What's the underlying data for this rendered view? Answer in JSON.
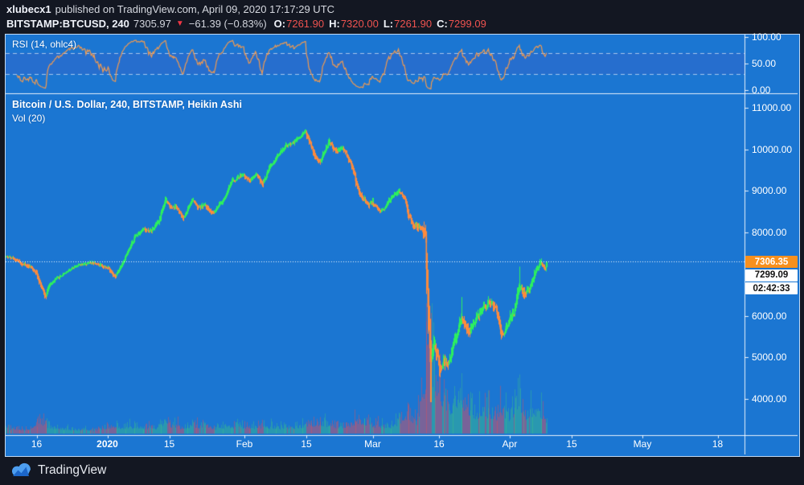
{
  "header": {
    "username": "xlubecx1",
    "published_text": "published on TradingView.com, April 09, 2020 17:17:29 UTC",
    "symbol": "BITSTAMP:BTCUSD, 240",
    "last_price": "7305.97",
    "direction_icon": "▼",
    "change_text": "−61.39 (−0.83%)",
    "ohlc": [
      {
        "label": "O:",
        "value": "7261.90"
      },
      {
        "label": "H:",
        "value": "7320.00"
      },
      {
        "label": "L:",
        "value": "7261.90"
      },
      {
        "label": "C:",
        "value": "7299.09"
      }
    ]
  },
  "rsi_pane": {
    "label": "RSI (14, ohlc4)",
    "axis_labels": [
      {
        "value": 100,
        "text": "100.00"
      },
      {
        "value": 50,
        "text": "50.00"
      },
      {
        "value": 0,
        "text": "0.00"
      }
    ],
    "upper_band": 70,
    "lower_band": 30
  },
  "main_pane": {
    "title": "Bitcoin / U.S. Dollar, 240, BITSTAMP, Heikin Ashi",
    "vol_label": "Vol (20)",
    "axis_labels": [
      {
        "price": 11000,
        "text": "11000.00"
      },
      {
        "price": 10000,
        "text": "10000.00"
      },
      {
        "price": 9000,
        "text": "9000.00"
      },
      {
        "price": 8000,
        "text": "8000.00"
      },
      {
        "price": 6000,
        "text": "6000.00"
      },
      {
        "price": 5000,
        "text": "5000.00"
      },
      {
        "price": 4000,
        "text": "4000.00"
      }
    ],
    "price_tags": [
      {
        "text": "7306.35",
        "bg": "#f7901e",
        "fg": "#ffffff",
        "name": "countdown-price-tag"
      },
      {
        "text": "7299.09",
        "bg": "#ffffff",
        "fg": "#111111",
        "name": "last-close-tag"
      },
      {
        "text": "02:42:33",
        "bg": "#ffffff",
        "fg": "#111111",
        "name": "bar-countdown-tag"
      }
    ]
  },
  "time_axis": {
    "ticks": [
      {
        "day": 7,
        "label": "16"
      },
      {
        "day": 23,
        "label": "2020",
        "bold": true
      },
      {
        "day": 37,
        "label": "15"
      },
      {
        "day": 54,
        "label": "Feb"
      },
      {
        "day": 68,
        "label": "15"
      },
      {
        "day": 83,
        "label": "Mar"
      },
      {
        "day": 98,
        "label": "16"
      },
      {
        "day": 114,
        "label": "Apr"
      },
      {
        "day": 128,
        "label": "15"
      },
      {
        "day": 144,
        "label": "May"
      },
      {
        "day": 161,
        "label": "18"
      }
    ]
  },
  "footer": {
    "brand": "TradingView"
  },
  "colors": {
    "page_bg": "#131722",
    "chart_bg": "#1b76d2",
    "candle_up": "#2df05f",
    "candle_down": "#ff8b3d",
    "vol_up": "rgba(62,205,125,0.40)",
    "vol_down": "rgba(214,80,96,0.50)",
    "rsi_line": "#f29a4f",
    "rsi_band_fill": "rgba(100,66,186,0.16)",
    "separator": "rgba(255,255,255,0.9)",
    "accent_tag": "#f7901e",
    "down_red": "#ef5350"
  },
  "chart_data": {
    "type": "heikin-ashi candlestick + volume + rsi",
    "symbol": "BITSTAMP:BTCUSD",
    "interval_minutes": 240,
    "chart_style": "Heikin Ashi",
    "indicators": [
      "RSI (14, ohlc4)",
      "Vol (20)"
    ],
    "current_price": 7306.35,
    "prev_close": 7299.09,
    "bar_countdown": "02:42:33",
    "date_range": {
      "start": "2019-12-09",
      "end_of_data": "2020-04-09",
      "axis_end": "2020-05-20"
    },
    "price_axis_range_visible": [
      3170,
      11330
    ],
    "rsi_axis_range": [
      0,
      100
    ],
    "price_anchors_day_price": [
      [
        0,
        7420
      ],
      [
        3,
        7280
      ],
      [
        5,
        7150
      ],
      [
        7,
        7000
      ],
      [
        8.6,
        6550
      ],
      [
        9,
        6480
      ],
      [
        9.4,
        6700
      ],
      [
        11,
        6870
      ],
      [
        13,
        7050
      ],
      [
        16,
        7180
      ],
      [
        19,
        7250
      ],
      [
        21,
        7190
      ],
      [
        23,
        7210
      ],
      [
        24.6,
        6950
      ],
      [
        25.4,
        7080
      ],
      [
        26.5,
        7360
      ],
      [
        29,
        7880
      ],
      [
        31,
        8050
      ],
      [
        33,
        8020
      ],
      [
        34.5,
        8180
      ],
      [
        36,
        8780
      ],
      [
        37,
        8680
      ],
      [
        38.5,
        8620
      ],
      [
        40,
        8350
      ],
      [
        42,
        8860
      ],
      [
        43.5,
        8580
      ],
      [
        45,
        8640
      ],
      [
        47,
        8440
      ],
      [
        49,
        8680
      ],
      [
        51,
        9260
      ],
      [
        53,
        9380
      ],
      [
        55,
        9320
      ],
      [
        56.5,
        9480
      ],
      [
        58,
        9160
      ],
      [
        60,
        9640
      ],
      [
        62,
        9880
      ],
      [
        64,
        10080
      ],
      [
        66,
        10280
      ],
      [
        67.5,
        10440
      ],
      [
        68.5,
        10220
      ],
      [
        70,
        9900
      ],
      [
        71,
        9760
      ],
      [
        73,
        10180
      ],
      [
        74.5,
        9960
      ],
      [
        76,
        10000
      ],
      [
        78,
        9580
      ],
      [
        80,
        8920
      ],
      [
        82,
        8660
      ],
      [
        83,
        8760
      ],
      [
        84.5,
        8540
      ],
      [
        87,
        8820
      ],
      [
        89,
        9020
      ],
      [
        90,
        8860
      ],
      [
        91,
        8260
      ],
      [
        92,
        8060
      ],
      [
        94,
        8080
      ],
      [
        94.8,
        7900
      ],
      [
        95.5,
        5900
      ],
      [
        96,
        4650
      ],
      [
        96.5,
        5200
      ],
      [
        97,
        5350
      ],
      [
        98,
        4870
      ],
      [
        99,
        5150
      ],
      [
        100,
        5020
      ],
      [
        101.5,
        5350
      ],
      [
        103,
        6120
      ],
      [
        103.8,
        5840
      ],
      [
        105,
        5480
      ],
      [
        107,
        5980
      ],
      [
        109,
        6380
      ],
      [
        110,
        6220
      ],
      [
        111,
        6050
      ],
      [
        112,
        5640
      ],
      [
        113,
        5850
      ],
      [
        114,
        6080
      ],
      [
        115,
        6180
      ],
      [
        116,
        6750
      ],
      [
        117,
        6580
      ],
      [
        118,
        6640
      ],
      [
        119,
        6800
      ],
      [
        120,
        7020
      ],
      [
        121,
        7270
      ],
      [
        121.8,
        7060
      ],
      [
        122.5,
        7306
      ]
    ],
    "volatility_anchors_day_amp": [
      [
        0,
        55
      ],
      [
        8,
        90
      ],
      [
        10,
        70
      ],
      [
        14,
        50
      ],
      [
        24,
        75
      ],
      [
        27,
        70
      ],
      [
        30,
        85
      ],
      [
        36,
        100
      ],
      [
        40,
        80
      ],
      [
        51,
        90
      ],
      [
        56,
        95
      ],
      [
        62,
        85
      ],
      [
        68,
        110
      ],
      [
        71,
        120
      ],
      [
        78,
        95
      ],
      [
        80,
        110
      ],
      [
        88,
        90
      ],
      [
        91,
        150
      ],
      [
        94,
        160
      ],
      [
        95,
        420
      ],
      [
        96,
        500
      ],
      [
        97,
        330
      ],
      [
        99,
        260
      ],
      [
        101,
        230
      ],
      [
        103,
        260
      ],
      [
        105,
        220
      ],
      [
        108,
        170
      ],
      [
        112,
        180
      ],
      [
        116,
        190
      ],
      [
        119,
        140
      ],
      [
        122.5,
        120
      ]
    ],
    "volume_anchors_day_rel": [
      [
        0,
        0.06
      ],
      [
        5,
        0.05
      ],
      [
        8,
        0.14
      ],
      [
        10,
        0.08
      ],
      [
        14,
        0.05
      ],
      [
        20,
        0.04
      ],
      [
        24,
        0.09
      ],
      [
        26,
        0.07
      ],
      [
        29,
        0.08
      ],
      [
        34,
        0.07
      ],
      [
        36,
        0.12
      ],
      [
        40,
        0.07
      ],
      [
        42,
        0.1
      ],
      [
        47,
        0.06
      ],
      [
        51,
        0.09
      ],
      [
        55,
        0.07
      ],
      [
        58,
        0.08
      ],
      [
        62,
        0.07
      ],
      [
        66,
        0.08
      ],
      [
        68,
        0.1
      ],
      [
        71,
        0.13
      ],
      [
        75,
        0.08
      ],
      [
        78,
        0.1
      ],
      [
        80,
        0.16
      ],
      [
        83,
        0.1
      ],
      [
        87,
        0.08
      ],
      [
        91,
        0.22
      ],
      [
        93,
        0.14
      ],
      [
        95,
        0.75
      ],
      [
        96,
        1.0
      ],
      [
        97,
        0.6
      ],
      [
        98,
        0.55
      ],
      [
        99,
        0.38
      ],
      [
        100,
        0.32
      ],
      [
        101,
        0.28
      ],
      [
        103,
        0.5
      ],
      [
        104,
        0.32
      ],
      [
        105,
        0.28
      ],
      [
        107,
        0.22
      ],
      [
        109,
        0.24
      ],
      [
        111,
        0.2
      ],
      [
        112,
        0.28
      ],
      [
        114,
        0.18
      ],
      [
        116,
        0.4
      ],
      [
        117,
        0.22
      ],
      [
        118,
        0.2
      ],
      [
        120,
        0.3
      ],
      [
        121,
        0.22
      ],
      [
        122.5,
        0.16
      ]
    ],
    "low_spikes": [
      [
        96.1,
        3920
      ],
      [
        8.7,
        6410
      ]
    ],
    "high_spikes": [
      [
        116.2,
        7180
      ],
      [
        103.2,
        6450
      ]
    ],
    "rsi_period": 14
  }
}
